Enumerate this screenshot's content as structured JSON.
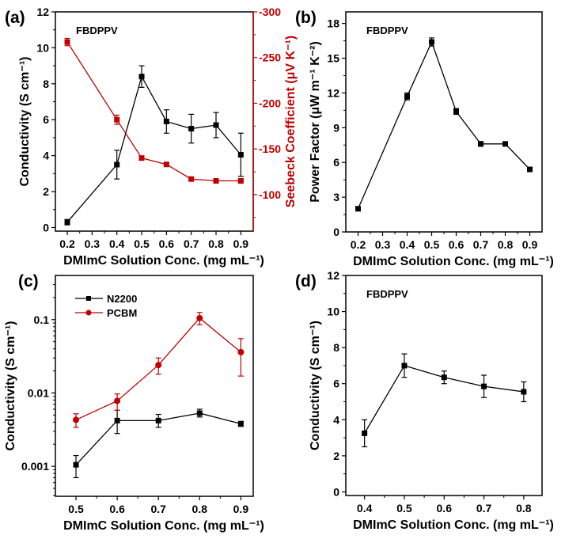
{
  "chart_data": [
    {
      "id": "a",
      "type": "line",
      "panel_label": "(a)",
      "annotation": "FBDPPV",
      "xlabel": "DMImC Solution Conc. (mg mL⁻¹)",
      "ylabel": "Conductivity (S cm⁻¹)",
      "y2label": "Seebeck Coefficient (μV K⁻¹)",
      "y2label_color": "#c00000",
      "xlim": [
        0.152,
        0.95
      ],
      "ylim": [
        -0.2,
        12
      ],
      "y2lim": [
        -60,
        -300
      ],
      "xticks": [
        0.2,
        0.3,
        0.4,
        0.5,
        0.6,
        0.7,
        0.8,
        0.9
      ],
      "yticks": [
        0,
        2,
        4,
        6,
        8,
        10,
        12
      ],
      "y2ticks": [
        -100,
        -150,
        -200,
        -250,
        -300
      ],
      "series": [
        {
          "name": "Conductivity",
          "axis": "left",
          "color": "#000000",
          "marker": "square",
          "x": [
            0.2,
            0.4,
            0.5,
            0.6,
            0.7,
            0.8,
            0.9
          ],
          "y": [
            0.3,
            3.5,
            8.4,
            5.9,
            5.5,
            5.7,
            4.05
          ],
          "err": [
            0.15,
            0.8,
            0.6,
            0.65,
            0.8,
            0.7,
            1.2
          ]
        },
        {
          "name": "Seebeck Coefficient",
          "axis": "right",
          "color": "#c00000",
          "marker": "square",
          "x": [
            0.2,
            0.4,
            0.5,
            0.6,
            0.7,
            0.8,
            0.9
          ],
          "y": [
            -267,
            -182,
            -140,
            -133,
            -117,
            -115,
            -115
          ],
          "err": [
            4,
            5,
            2,
            2,
            2,
            1,
            1
          ]
        }
      ]
    },
    {
      "id": "b",
      "type": "line",
      "panel_label": "(b)",
      "annotation": "FBDPPV",
      "xlabel": "DMImC Solution Conc. (mg mL⁻¹)",
      "ylabel": "Power Factor (μW m⁻¹ K⁻²)",
      "xlim": [
        0.15,
        0.95
      ],
      "ylim": [
        0,
        19
      ],
      "xticks": [
        0.2,
        0.3,
        0.4,
        0.5,
        0.6,
        0.7,
        0.8,
        0.9
      ],
      "yticks": [
        0,
        3,
        6,
        9,
        12,
        15,
        18
      ],
      "series": [
        {
          "name": "Power Factor",
          "axis": "left",
          "color": "#000000",
          "marker": "square",
          "x": [
            0.2,
            0.4,
            0.5,
            0.6,
            0.7,
            0.8,
            0.9
          ],
          "y": [
            2.0,
            11.7,
            16.4,
            10.4,
            7.6,
            7.6,
            5.4
          ],
          "err": [
            0.1,
            0.3,
            0.35,
            0.25,
            0.2,
            0.1,
            0.1
          ]
        }
      ]
    },
    {
      "id": "c",
      "type": "line",
      "yscale": "log",
      "panel_label": "(c)",
      "xlabel": "DMImC Solution Conc. (mg mL⁻¹)",
      "ylabel": "Conductivity (S cm⁻¹)",
      "legend_placement": "top-left",
      "xlim": [
        0.45,
        0.93
      ],
      "ylim": [
        0.00039,
        0.4
      ],
      "xticks": [
        0.5,
        0.6,
        0.7,
        0.8,
        0.9
      ],
      "yticks": [
        0.001,
        0.01,
        0.1
      ],
      "series": [
        {
          "name": "N2200",
          "axis": "left",
          "color": "#000000",
          "marker": "square",
          "x": [
            0.5,
            0.6,
            0.7,
            0.8,
            0.9
          ],
          "y": [
            0.00105,
            0.0042,
            0.0042,
            0.0053,
            0.0038
          ],
          "err_low": [
            0.0007,
            0.0028,
            0.0034,
            0.0047,
            0.0035
          ],
          "err_high": [
            0.0014,
            0.0058,
            0.0051,
            0.006,
            0.0041
          ]
        },
        {
          "name": "PCBM",
          "axis": "left",
          "color": "#c00000",
          "marker": "circle",
          "x": [
            0.5,
            0.6,
            0.7,
            0.8,
            0.9
          ],
          "y": [
            0.0043,
            0.0078,
            0.024,
            0.105,
            0.036
          ],
          "err_low": [
            0.0034,
            0.0058,
            0.018,
            0.085,
            0.017
          ],
          "err_high": [
            0.0052,
            0.0097,
            0.03,
            0.125,
            0.055
          ]
        }
      ]
    },
    {
      "id": "d",
      "type": "line",
      "panel_label": "(d)",
      "annotation": "FBDPPV",
      "xlabel": "DMImC Solution Conc. (mg mL⁻¹)",
      "ylabel": "Conductivity (S cm⁻¹)",
      "xlim": [
        0.353,
        0.846
      ],
      "ylim": [
        -0.2,
        12
      ],
      "xticks": [
        0.4,
        0.5,
        0.6,
        0.7,
        0.8
      ],
      "yticks": [
        0,
        2,
        4,
        6,
        8,
        10,
        12
      ],
      "series": [
        {
          "name": "Conductivity",
          "axis": "left",
          "color": "#000000",
          "marker": "square",
          "x": [
            0.4,
            0.5,
            0.6,
            0.7,
            0.8
          ],
          "y": [
            3.25,
            7.0,
            6.35,
            5.85,
            5.55
          ],
          "err": [
            0.75,
            0.65,
            0.35,
            0.62,
            0.55
          ]
        }
      ]
    }
  ]
}
